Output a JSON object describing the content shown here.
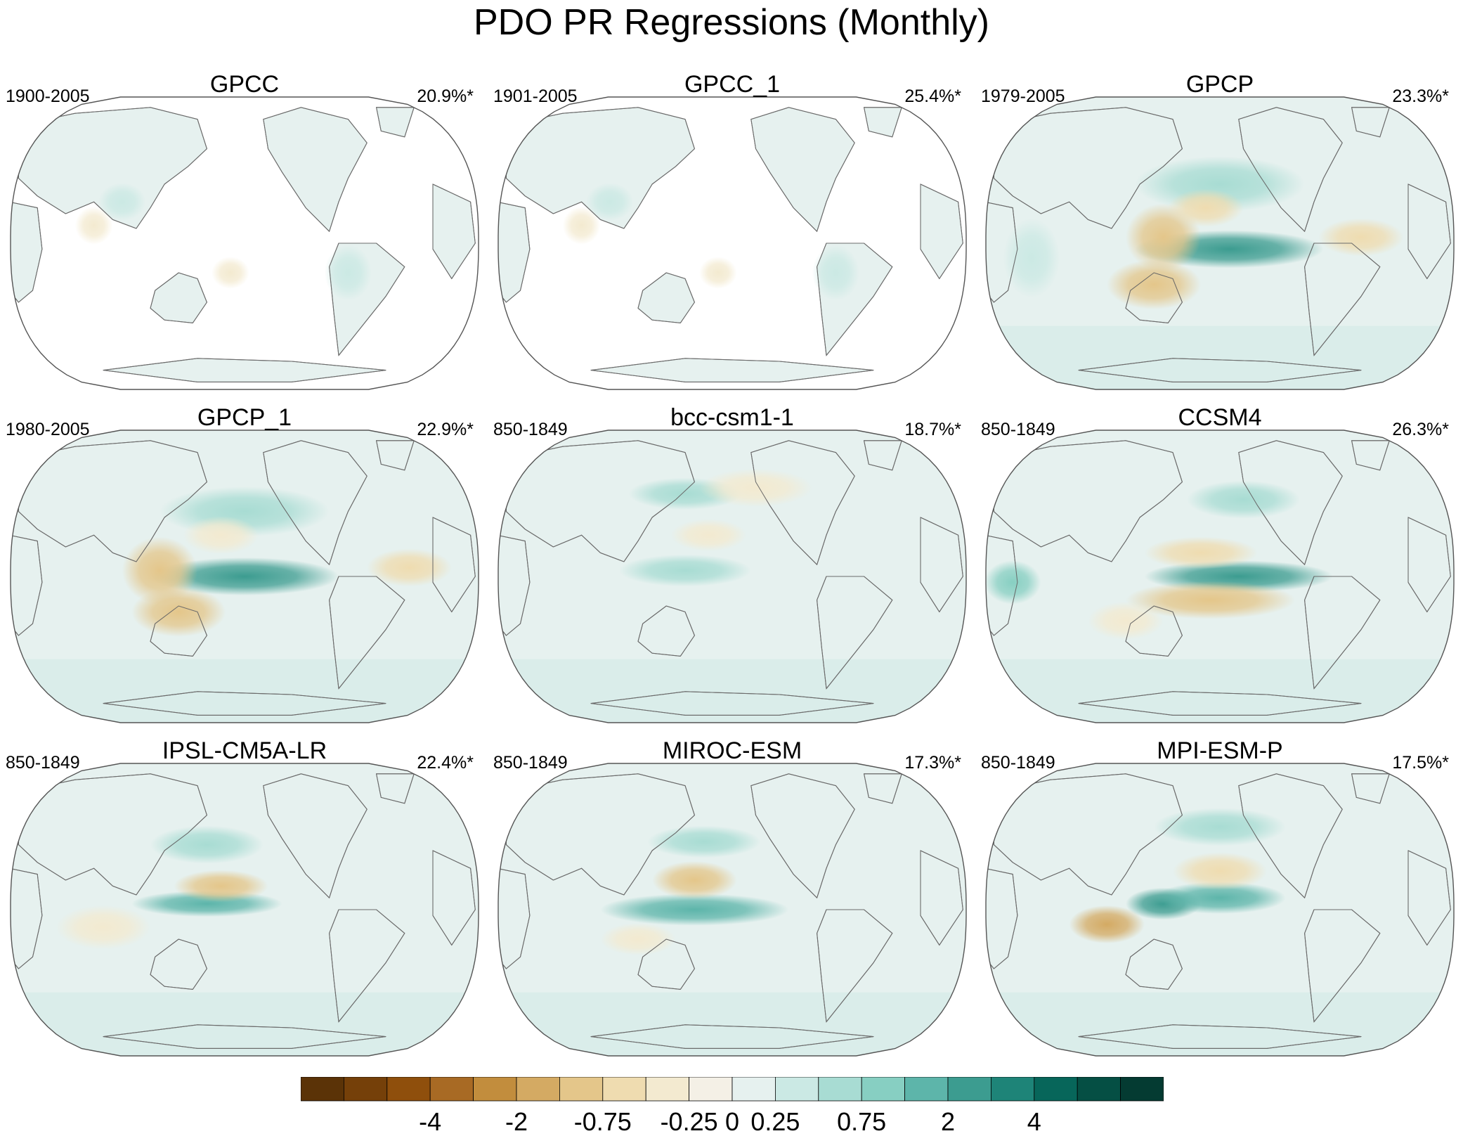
{
  "figure_title": "PDO PR Regressions (Monthly)",
  "chart_data": {
    "type": "heatmap",
    "projection": "Robinson, Pacific-centered global maps",
    "variable": "PR",
    "panels": [
      {
        "name": "GPCC",
        "period": "1900-2005",
        "variance": "20.9%*",
        "coverage": "land",
        "blobs": [
          [
            -0.3,
            0.18,
            0.44,
            0.04,
            0.05
          ],
          [
            0.3,
            0.72,
            0.6,
            0.05,
            0.08
          ],
          [
            0.35,
            0.24,
            0.36,
            0.05,
            0.05
          ],
          [
            -0.3,
            0.47,
            0.6,
            0.04,
            0.04
          ]
        ]
      },
      {
        "name": "GPCC_1",
        "period": "1901-2005",
        "variance": "25.4%*",
        "coverage": "land",
        "blobs": [
          [
            -0.3,
            0.18,
            0.44,
            0.04,
            0.05
          ],
          [
            0.3,
            0.72,
            0.6,
            0.05,
            0.08
          ],
          [
            0.35,
            0.24,
            0.36,
            0.05,
            0.05
          ],
          [
            -0.3,
            0.47,
            0.6,
            0.04,
            0.04
          ]
        ]
      },
      {
        "name": "GPCP",
        "period": "1979-2005",
        "variance": "23.3%*",
        "coverage": "global",
        "blobs": [
          [
            2.6,
            0.52,
            0.52,
            0.2,
            0.05
          ],
          [
            -0.9,
            0.38,
            0.48,
            0.08,
            0.1
          ],
          [
            -0.8,
            0.36,
            0.64,
            0.1,
            0.07
          ],
          [
            -0.7,
            0.8,
            0.48,
            0.09,
            0.05
          ],
          [
            0.5,
            0.5,
            0.3,
            0.18,
            0.08
          ],
          [
            -0.6,
            0.47,
            0.38,
            0.08,
            0.05
          ],
          [
            0.4,
            0.1,
            0.55,
            0.06,
            0.12
          ]
        ]
      },
      {
        "name": "GPCP_1",
        "period": "1980-2005",
        "variance": "22.9%*",
        "coverage": "global",
        "blobs": [
          [
            2.6,
            0.5,
            0.5,
            0.2,
            0.05
          ],
          [
            -0.9,
            0.32,
            0.48,
            0.08,
            0.1
          ],
          [
            -0.9,
            0.36,
            0.62,
            0.1,
            0.07
          ],
          [
            -0.7,
            0.85,
            0.47,
            0.09,
            0.05
          ],
          [
            0.5,
            0.5,
            0.28,
            0.18,
            0.07
          ],
          [
            -0.5,
            0.45,
            0.36,
            0.08,
            0.05
          ]
        ]
      },
      {
        "name": "bcc-csm1-1",
        "period": "850-1849",
        "variance": "18.7%*",
        "coverage": "global",
        "blobs": [
          [
            0.7,
            0.4,
            0.48,
            0.14,
            0.04
          ],
          [
            0.6,
            0.4,
            0.22,
            0.12,
            0.04
          ],
          [
            -0.4,
            0.45,
            0.36,
            0.08,
            0.04
          ],
          [
            -0.3,
            0.55,
            0.2,
            0.12,
            0.05
          ]
        ]
      },
      {
        "name": "CCSM4",
        "period": "850-1849",
        "variance": "26.3%*",
        "coverage": "global",
        "blobs": [
          [
            2.3,
            0.54,
            0.5,
            0.2,
            0.04
          ],
          [
            -0.9,
            0.48,
            0.58,
            0.18,
            0.05
          ],
          [
            -0.6,
            0.46,
            0.42,
            0.12,
            0.04
          ],
          [
            0.9,
            0.06,
            0.52,
            0.06,
            0.06
          ],
          [
            0.5,
            0.55,
            0.24,
            0.12,
            0.05
          ],
          [
            -0.4,
            0.3,
            0.65,
            0.08,
            0.05
          ]
        ]
      },
      {
        "name": "IPSL-CM5A-LR",
        "period": "850-1849",
        "variance": "22.4%*",
        "coverage": "global",
        "blobs": [
          [
            1.9,
            0.42,
            0.48,
            0.16,
            0.03
          ],
          [
            -0.8,
            0.45,
            0.42,
            0.1,
            0.04
          ],
          [
            0.7,
            0.42,
            0.28,
            0.12,
            0.05
          ],
          [
            -0.3,
            0.2,
            0.56,
            0.1,
            0.06
          ]
        ]
      },
      {
        "name": "MIROC-ESM",
        "period": "850-1849",
        "variance": "17.3%*",
        "coverage": "global",
        "blobs": [
          [
            1.4,
            0.42,
            0.5,
            0.2,
            0.04
          ],
          [
            -0.8,
            0.42,
            0.4,
            0.09,
            0.05
          ],
          [
            0.6,
            0.44,
            0.27,
            0.12,
            0.04
          ],
          [
            -0.5,
            0.3,
            0.6,
            0.08,
            0.04
          ]
        ]
      },
      {
        "name": "MPI-ESM-P",
        "period": "850-1849",
        "variance": "17.5%*",
        "coverage": "global",
        "blobs": [
          [
            2.6,
            0.38,
            0.48,
            0.08,
            0.04
          ],
          [
            1.1,
            0.5,
            0.46,
            0.14,
            0.04
          ],
          [
            -1.2,
            0.26,
            0.55,
            0.08,
            0.05
          ],
          [
            -0.7,
            0.5,
            0.37,
            0.1,
            0.05
          ],
          [
            0.6,
            0.5,
            0.22,
            0.14,
            0.05
          ]
        ]
      }
    ],
    "colorbar": {
      "levels": [
        -6,
        -5,
        -4,
        -3,
        -2,
        -1,
        -0.75,
        -0.5,
        -0.25,
        0,
        0.25,
        0.5,
        0.75,
        1,
        2,
        3,
        4,
        5,
        6
      ],
      "colors": [
        "#5b3307",
        "#754009",
        "#8f4f0c",
        "#a86a24",
        "#c28d3d",
        "#d4aa63",
        "#e4c68a",
        "#efdcb0",
        "#f3ead0",
        "#f4f0e6",
        "#e6f1ef",
        "#cbe9e4",
        "#a8dcd3",
        "#87cfc2",
        "#5db5aa",
        "#3c9c90",
        "#1e8478",
        "#07665a",
        "#054f44",
        "#043b32"
      ],
      "tick_labels": [
        "-4",
        "-2",
        "-0.75",
        "-0.25",
        "0",
        "0.25",
        "0.75",
        "2",
        "4"
      ],
      "tick_levels": [
        -4,
        -2,
        -0.75,
        -0.25,
        0,
        0.25,
        0.75,
        2,
        4
      ]
    }
  }
}
